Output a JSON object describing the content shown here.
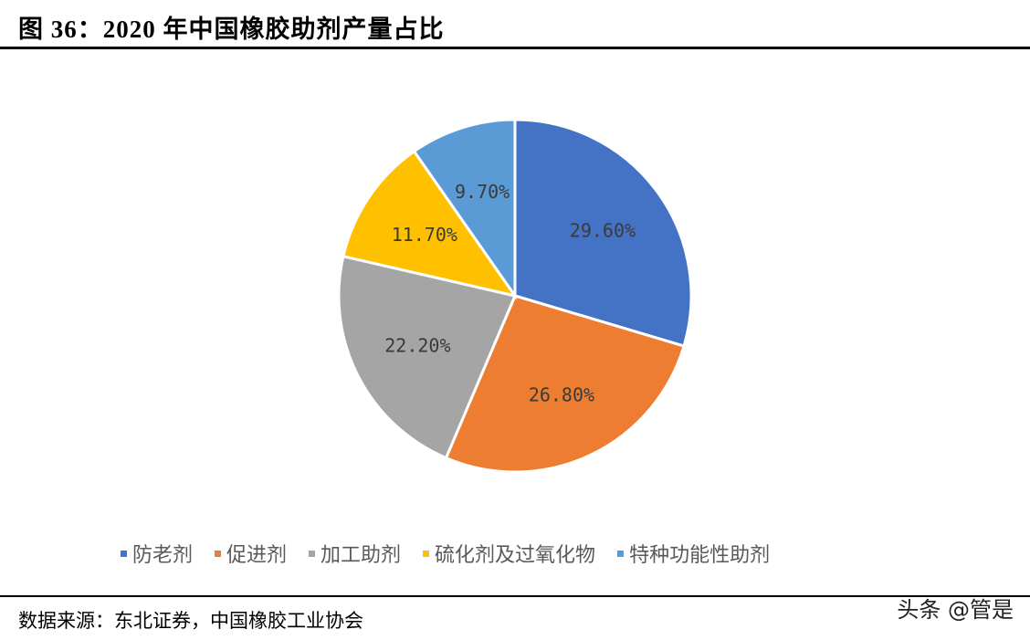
{
  "title": "图 36：2020 年中国橡胶助剂产量占比",
  "source": "数据来源：东北证券，中国橡胶工业协会",
  "watermark": "头条 @管是",
  "chart_data": {
    "type": "pie",
    "title": "2020年中国橡胶助剂产量占比",
    "categories": [
      "防老剂",
      "促进剂",
      "加工助剂",
      "硫化剂及过氧化物",
      "特种功能性助剂"
    ],
    "values": [
      29.6,
      26.8,
      22.2,
      11.7,
      9.7
    ],
    "labels": [
      "29.60%",
      "26.80%",
      "22.20%",
      "11.70%",
      "9.70%"
    ],
    "colors": [
      "#4472C4",
      "#ED7D31",
      "#A5A5A5",
      "#FFC000",
      "#5B9BD5"
    ],
    "legend_position": "bottom",
    "start_angle_deg": 0,
    "direction": "clockwise"
  },
  "legend": [
    {
      "label": "防老剂",
      "color": "#4472C4"
    },
    {
      "label": "促进剂",
      "color": "#ED7D31"
    },
    {
      "label": "加工助剂",
      "color": "#A5A5A5"
    },
    {
      "label": "硫化剂及过氧化物",
      "color": "#FFC000"
    },
    {
      "label": "特种功能性助剂",
      "color": "#5B9BD5"
    }
  ]
}
